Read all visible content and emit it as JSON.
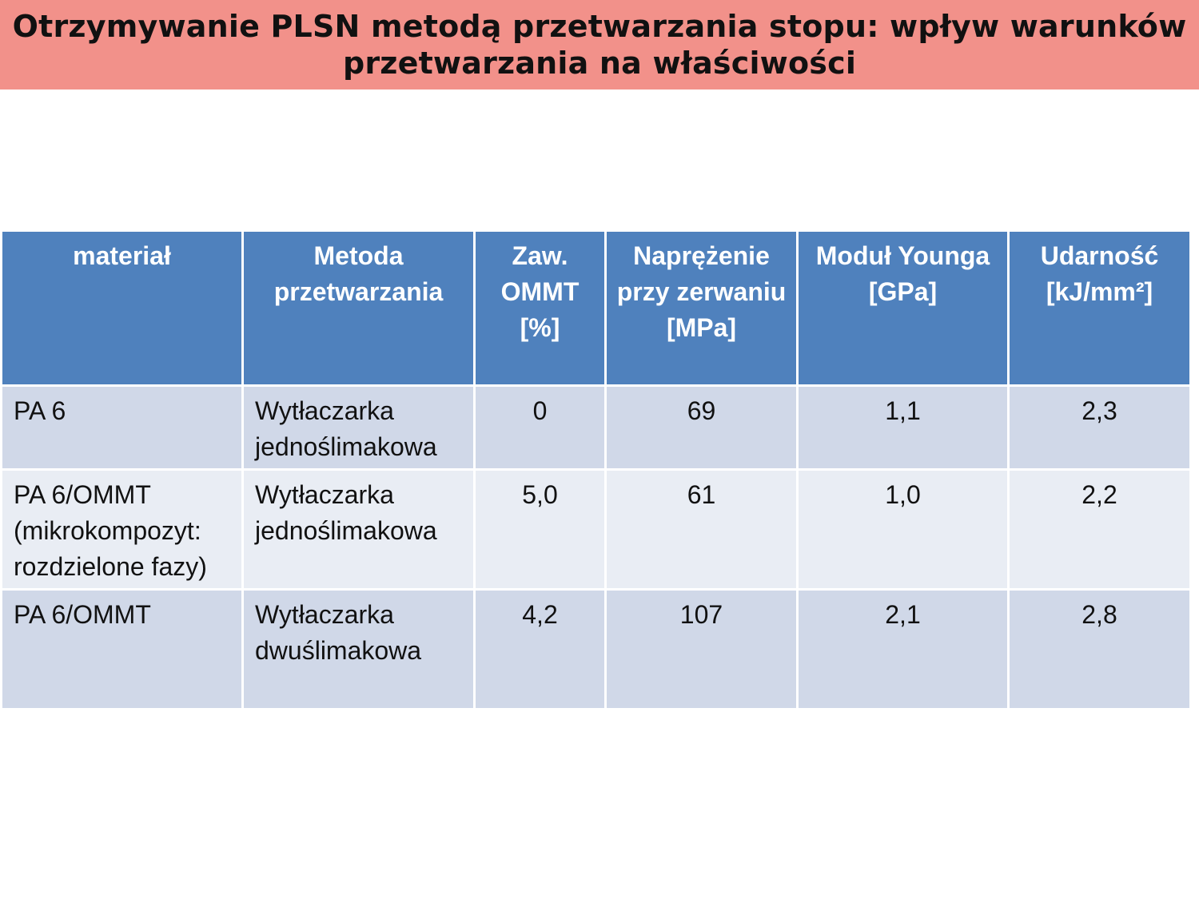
{
  "title": "Otrzymywanie PLSN metodą przetwarzania stopu: wpływ warunków przetwarzania na właściwości",
  "table": {
    "headers": [
      "materiał",
      "Metoda przetwarzania",
      "Zaw. OMMT [%]",
      "Naprężenie przy zerwaniu [MPa]",
      "Moduł Younga [GPa]",
      "Udarność [kJ/mm²]"
    ],
    "rows": [
      {
        "material": "PA 6",
        "method": "Wytłaczarka jednoślimakowa",
        "ommt": "0",
        "stress": "69",
        "modulus": "1,1",
        "impact": "2,3"
      },
      {
        "material": "PA 6/OMMT (mikrokompozyt: rozdzielone fazy)",
        "method": "Wytłaczarka jednoślimakowa",
        "ommt": "5,0",
        "stress": "61",
        "modulus": "1,0",
        "impact": "2,2"
      },
      {
        "material": "PA 6/OMMT",
        "method": "Wytłaczarka dwuślimakowa",
        "ommt": "4,2",
        "stress": "107",
        "modulus": "2,1",
        "impact": "2,8"
      }
    ]
  }
}
